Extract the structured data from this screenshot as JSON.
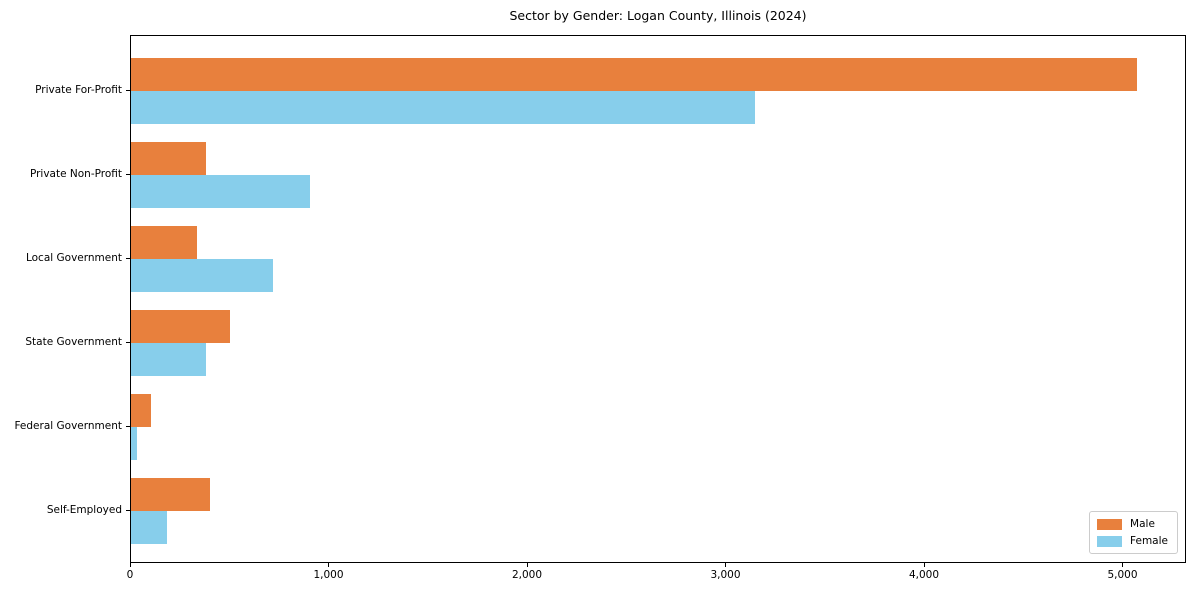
{
  "chart_title": "Sector by Gender: Logan County, Illinois (2024)",
  "chart_data": {
    "type": "bar",
    "orientation": "horizontal",
    "title": "Sector by Gender: Logan County, Illinois (2024)",
    "categories": [
      "Private For-Profit",
      "Private Non-Profit",
      "Local Government",
      "State Government",
      "Federal Government",
      "Self-Employed"
    ],
    "series": [
      {
        "name": "Male",
        "color": "#E8803D",
        "values": [
          5070,
          380,
          335,
          500,
          100,
          400
        ]
      },
      {
        "name": "Female",
        "color": "#87CEEB",
        "values": [
          3145,
          900,
          715,
          380,
          28,
          180
        ]
      }
    ],
    "xlabel": "",
    "ylabel": "",
    "xlim": [
      0,
      5320
    ],
    "xticks": [
      0,
      1000,
      2000,
      3000,
      4000,
      5000
    ],
    "xtick_labels": [
      "0",
      "1,000",
      "2,000",
      "3,000",
      "4,000",
      "5,000"
    ],
    "grid": false,
    "legend": {
      "position": "lower right",
      "entries": [
        "Male",
        "Female"
      ]
    }
  }
}
